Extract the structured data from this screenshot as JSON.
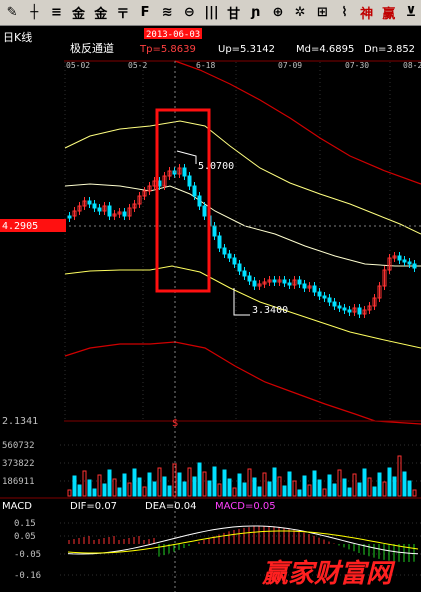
{
  "toolbar": {
    "buttons": [
      {
        "glyph": "✎",
        "name": "draw-pen-icon",
        "red": false
      },
      {
        "glyph": "┼",
        "name": "crosshair-icon",
        "red": false
      },
      {
        "glyph": "≡",
        "name": "line-tool-icon",
        "red": false
      },
      {
        "glyph": "金",
        "name": "golden-section-icon",
        "red": false
      },
      {
        "glyph": "金",
        "name": "golden-price-icon",
        "red": false
      },
      {
        "glyph": "〒",
        "name": "fan-line-icon",
        "red": false
      },
      {
        "glyph": "F",
        "name": "fibonacci-icon",
        "red": false
      },
      {
        "glyph": "≋",
        "name": "parallel-channel-icon",
        "red": false
      },
      {
        "glyph": "⊖",
        "name": "circle-tool-icon",
        "red": false
      },
      {
        "glyph": "|||",
        "name": "cycle-line-icon",
        "red": false
      },
      {
        "glyph": "甘",
        "name": "gann-icon",
        "red": false
      },
      {
        "glyph": "ɲ",
        "name": "wave-icon",
        "red": false
      },
      {
        "glyph": "⊕",
        "name": "target-icon",
        "red": false
      },
      {
        "glyph": "✲",
        "name": "star-tool-icon",
        "red": false
      },
      {
        "glyph": "⊞",
        "name": "box-tool-icon",
        "red": false
      },
      {
        "glyph": "⌇",
        "name": "arrow-line-icon",
        "red": false
      },
      {
        "glyph": "神",
        "name": "divine-line-icon",
        "red": true
      },
      {
        "glyph": "赢",
        "name": "win-tool-icon",
        "red": true
      },
      {
        "glyph": "⊻",
        "name": "erase-icon",
        "red": false
      }
    ]
  },
  "header": {
    "period": "日K线",
    "indicator": "极反通道",
    "tp": "Tp=5.8639",
    "up": "Up=5.3142",
    "md": "Md=4.6895",
    "dn": "Dn=3.852"
  },
  "date_axis": {
    "labels": [
      "05-02",
      "05-2",
      "2013-06-03",
      "6-18",
      "07-09",
      "07-30",
      "08-2"
    ],
    "highlight": "2013-06-03"
  },
  "price_marker": "4.2905",
  "annotations": {
    "high": "5.0700",
    "low": "3.3400",
    "bottom_price": "2.1341",
    "dollar_mark": "$"
  },
  "volume": {
    "ticks": [
      "560732",
      "373822",
      "186911"
    ]
  },
  "macd": {
    "name": "MACD",
    "dif": "DIF=0.07",
    "dea": "DEA=0.04",
    "value": "MACD=0.05",
    "ticks": [
      "0.15",
      "0.05",
      "-0.05",
      "-0.16"
    ]
  },
  "watermark": "赢家财富网",
  "colors": {
    "up": "#ff3232",
    "down": "#00e0ff",
    "tp_band": "#d00000",
    "up_band": "#ffff80",
    "md_band": "#ffffd0",
    "dn_band": "#ffff60",
    "macd_label": "#ff40ff",
    "highlight_box": "#ff1010"
  },
  "chart_data": {
    "type": "candlestick",
    "price_axis_min": 2.1341,
    "current_price": 4.2905,
    "annotated_high": 5.07,
    "annotated_low": 3.34,
    "macd": {
      "dif": 0.07,
      "dea": 0.04,
      "macd": 0.05
    },
    "bands": {
      "tp": 5.8639,
      "up": 5.3142,
      "md": 4.6895,
      "dn": 3.852
    }
  }
}
